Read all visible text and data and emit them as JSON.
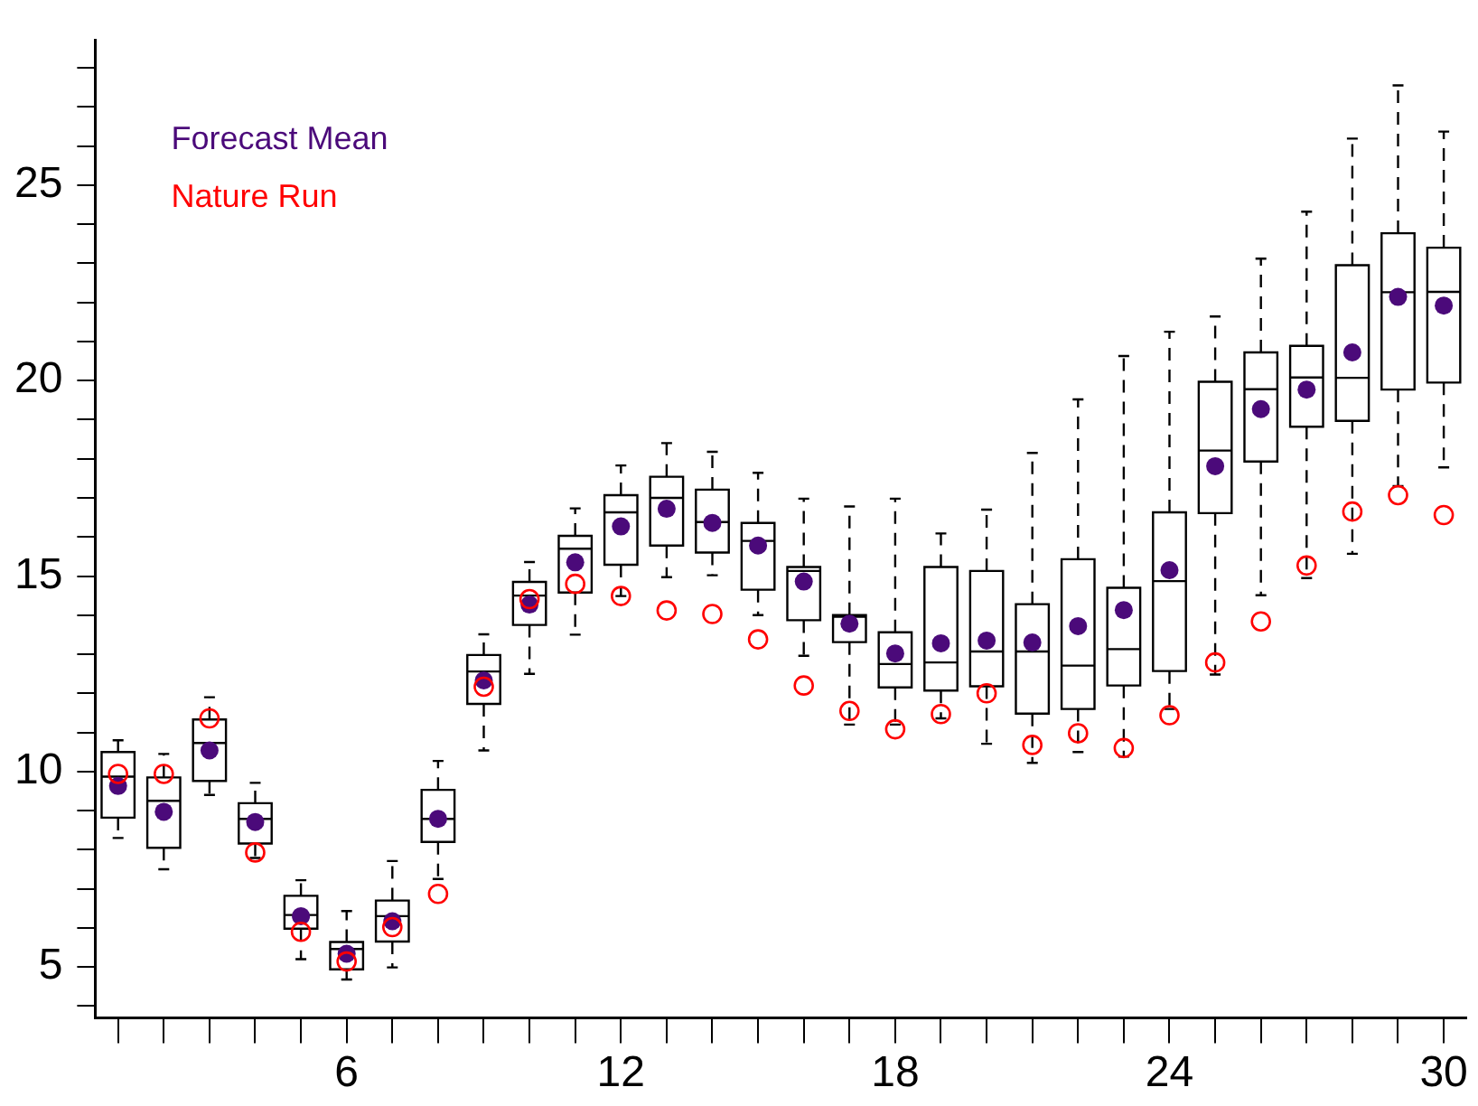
{
  "chart_data": {
    "type": "box",
    "categories": [
      null,
      null,
      null,
      null,
      null,
      "6",
      null,
      null,
      null,
      null,
      null,
      "12",
      null,
      null,
      null,
      null,
      null,
      "18",
      null,
      null,
      null,
      null,
      null,
      "24",
      null,
      null,
      null,
      null,
      null,
      "30"
    ],
    "boxes": [
      {
        "low": 8.3,
        "q1": 8.82,
        "median": 9.87,
        "q3": 10.5,
        "high": 10.8
      },
      {
        "low": 7.5,
        "q1": 8.05,
        "median": 9.25,
        "q3": 9.85,
        "high": 10.45
      },
      {
        "low": 9.4,
        "q1": 9.76,
        "median": 10.73,
        "q3": 11.33,
        "high": 11.9
      },
      {
        "low": 7.79,
        "q1": 8.16,
        "median": 8.79,
        "q3": 9.19,
        "high": 9.71
      },
      {
        "low": 5.2,
        "q1": 5.98,
        "median": 6.33,
        "q3": 6.82,
        "high": 7.22
      },
      {
        "low": 4.68,
        "q1": 4.94,
        "median": 5.46,
        "q3": 5.64,
        "high": 6.43
      },
      {
        "low": 4.99,
        "q1": 5.65,
        "median": 6.3,
        "q3": 6.7,
        "high": 7.71
      },
      {
        "low": 7.25,
        "q1": 8.2,
        "median": 8.79,
        "q3": 9.53,
        "high": 10.27
      },
      {
        "low": 10.54,
        "q1": 11.73,
        "median": 12.56,
        "q3": 12.98,
        "high": 13.51
      },
      {
        "low": 12.5,
        "q1": 13.75,
        "median": 14.5,
        "q3": 14.85,
        "high": 15.36
      },
      {
        "low": 13.5,
        "q1": 14.58,
        "median": 15.7,
        "q3": 16.03,
        "high": 16.73
      },
      {
        "low": 14.49,
        "q1": 15.29,
        "median": 16.63,
        "q3": 17.07,
        "high": 17.83
      },
      {
        "low": 14.97,
        "q1": 15.78,
        "median": 17.0,
        "q3": 17.54,
        "high": 18.4
      },
      {
        "low": 15.02,
        "q1": 15.6,
        "median": 16.38,
        "q3": 17.21,
        "high": 18.18
      },
      {
        "low": 14.0,
        "q1": 14.65,
        "median": 15.9,
        "q3": 16.36,
        "high": 17.64
      },
      {
        "low": 12.96,
        "q1": 13.87,
        "median": 15.13,
        "q3": 15.23,
        "high": 16.98
      },
      {
        "low": 11.2,
        "q1": 13.31,
        "median": 13.96,
        "q3": 14.0,
        "high": 16.78
      },
      {
        "low": 11.2,
        "q1": 12.15,
        "median": 12.75,
        "q3": 13.56,
        "high": 16.98
      },
      {
        "low": 11.36,
        "q1": 12.07,
        "median": 12.79,
        "q3": 15.23,
        "high": 16.09
      },
      {
        "low": 10.71,
        "q1": 12.18,
        "median": 13.07,
        "q3": 15.13,
        "high": 16.7
      },
      {
        "low": 10.22,
        "q1": 11.48,
        "median": 13.07,
        "q3": 14.28,
        "high": 18.15
      },
      {
        "low": 10.5,
        "q1": 11.6,
        "median": 12.71,
        "q3": 15.43,
        "high": 19.52
      },
      {
        "low": 10.38,
        "q1": 12.2,
        "median": 13.13,
        "q3": 14.7,
        "high": 20.63
      },
      {
        "low": 11.6,
        "q1": 12.57,
        "median": 14.87,
        "q3": 16.63,
        "high": 21.25
      },
      {
        "low": 12.48,
        "q1": 16.61,
        "median": 18.21,
        "q3": 19.97,
        "high": 21.64
      },
      {
        "low": 14.51,
        "q1": 17.93,
        "median": 19.78,
        "q3": 20.72,
        "high": 23.12
      },
      {
        "low": 14.95,
        "q1": 18.82,
        "median": 20.08,
        "q3": 20.89,
        "high": 24.32
      },
      {
        "low": 15.57,
        "q1": 18.97,
        "median": 20.07,
        "q3": 22.95,
        "high": 26.19
      },
      {
        "low": 17.3,
        "q1": 19.77,
        "median": 22.26,
        "q3": 23.77,
        "high": 27.55
      },
      {
        "low": 17.78,
        "q1": 19.95,
        "median": 22.27,
        "q3": 23.4,
        "high": 26.37
      }
    ],
    "series": [
      {
        "name": "Forecast Mean",
        "type": "scatter",
        "marker": "circle",
        "color": "#4b0a7a",
        "values": [
          9.63,
          8.97,
          10.54,
          8.71,
          6.3,
          5.34,
          6.17,
          8.79,
          12.33,
          14.27,
          15.35,
          16.27,
          16.72,
          16.36,
          15.78,
          14.86,
          13.78,
          13.02,
          13.28,
          13.35,
          13.3,
          13.72,
          14.13,
          15.15,
          17.81,
          19.27,
          19.77,
          20.72,
          22.14,
          21.92
        ]
      },
      {
        "name": "Nature Run",
        "type": "scatter",
        "marker": "circle",
        "color": "#ff0000",
        "values": [
          9.94,
          9.94,
          11.36,
          7.93,
          5.9,
          5.14,
          6.02,
          6.87,
          12.17,
          14.41,
          14.8,
          14.49,
          14.12,
          14.03,
          13.38,
          12.2,
          11.55,
          11.08,
          11.47,
          12.0,
          10.68,
          10.98,
          10.6,
          11.44,
          12.79,
          13.84,
          15.27,
          16.65,
          17.07,
          16.56
        ]
      }
    ],
    "ylim": [
      3.7,
      28.7
    ],
    "yticks": [
      {
        "value": 4,
        "label": null
      },
      5,
      {
        "value": 6,
        "label": null
      },
      {
        "value": 7,
        "label": null
      },
      {
        "value": 8,
        "label": null
      },
      {
        "value": 9,
        "label": null
      },
      10,
      {
        "value": 11,
        "label": null
      },
      {
        "value": 12,
        "label": null
      },
      {
        "value": 13,
        "label": null
      },
      {
        "value": 14,
        "label": null
      },
      15,
      {
        "value": 16,
        "label": null
      },
      {
        "value": 17,
        "label": null
      },
      {
        "value": 18,
        "label": null
      },
      {
        "value": 19,
        "label": null
      },
      20,
      {
        "value": 21,
        "label": null
      },
      {
        "value": 22,
        "label": null
      },
      {
        "value": 23,
        "label": null
      },
      {
        "value": 24,
        "label": null
      },
      25,
      {
        "value": 26,
        "label": null
      },
      {
        "value": 27,
        "label": null
      },
      {
        "value": 28,
        "label": null
      }
    ],
    "legend": "top left",
    "grid": false
  }
}
